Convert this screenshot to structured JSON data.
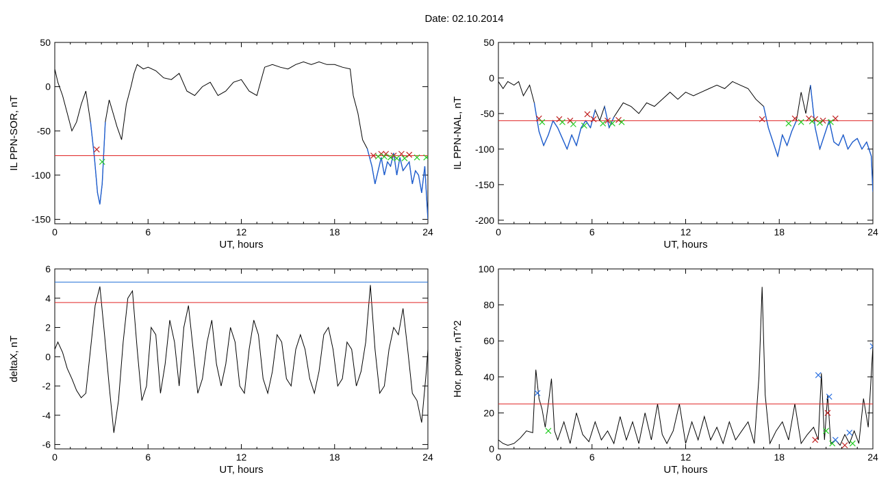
{
  "title": "Date:  02.10.2014",
  "colors": {
    "trace": "#000000",
    "below": "#1f5fd1",
    "threshold": "#e02020",
    "threshold_blue": "#1f6fd6",
    "mark_red": "#c02020",
    "mark_green": "#22cc22",
    "mark_blue": "#2a6fe0"
  },
  "chart_data": [
    {
      "type": "line",
      "xlabel": "UT, hours",
      "ylabel": "IL PPN-SOR, nT",
      "xlim": [
        0,
        24
      ],
      "ylim": [
        -155,
        50
      ],
      "xticks": [
        0,
        6,
        12,
        18,
        24
      ],
      "yticks": [
        50,
        0,
        -50,
        -100,
        -150
      ],
      "threshold": -78,
      "series": [
        {
          "x": [
            0,
            0.2,
            0.5,
            0.8,
            1.1,
            1.4,
            1.7,
            2.0,
            2.3,
            2.55,
            2.75,
            2.9,
            3.05,
            3.25,
            3.5,
            3.75,
            4.0,
            4.3,
            4.6,
            4.9,
            5.1,
            5.3,
            5.7,
            6.0,
            6.5,
            7.0,
            7.5,
            8.0,
            8.5,
            9.0,
            9.5,
            10.0,
            10.5,
            11.0,
            11.5,
            12.0,
            12.5,
            13.0,
            13.5,
            14.0,
            14.5,
            15.0,
            15.5,
            16.0,
            16.5,
            17.0,
            17.5,
            18.0,
            18.5,
            19.0,
            19.2,
            19.5,
            19.8,
            20.1,
            20.4,
            20.6,
            20.8,
            21.0,
            21.2,
            21.4,
            21.6,
            21.8,
            22.0,
            22.2,
            22.4,
            22.6,
            22.8,
            23.0,
            23.2,
            23.4,
            23.6,
            23.8,
            24.0
          ],
          "y": [
            20,
            5,
            -10,
            -30,
            -50,
            -40,
            -20,
            -5,
            -40,
            -80,
            -120,
            -133,
            -110,
            -40,
            -15,
            -30,
            -45,
            -60,
            -20,
            0,
            15,
            25,
            20,
            22,
            18,
            10,
            8,
            15,
            -5,
            -10,
            0,
            5,
            -10,
            -5,
            5,
            8,
            -5,
            -10,
            22,
            25,
            22,
            20,
            25,
            28,
            25,
            28,
            25,
            25,
            22,
            20,
            -10,
            -30,
            -60,
            -70,
            -90,
            -110,
            -95,
            -80,
            -100,
            -85,
            -90,
            -75,
            -100,
            -80,
            -95,
            -90,
            -85,
            -110,
            -95,
            -100,
            -120,
            -90,
            -150
          ]
        }
      ],
      "marks_red": [
        [
          2.7,
          -71
        ],
        [
          20.5,
          -78
        ],
        [
          21.0,
          -76
        ],
        [
          21.3,
          -76
        ],
        [
          21.8,
          -78
        ],
        [
          22.3,
          -76
        ],
        [
          22.8,
          -77
        ]
      ],
      "marks_green": [
        [
          3.05,
          -85
        ],
        [
          20.8,
          -79
        ],
        [
          21.2,
          -79
        ],
        [
          21.6,
          -80
        ],
        [
          22.0,
          -81
        ],
        [
          22.5,
          -81
        ],
        [
          23.3,
          -80
        ],
        [
          23.9,
          -80
        ]
      ]
    },
    {
      "type": "line",
      "xlabel": "UT, hours",
      "ylabel": "IL PPN-NAL, nT",
      "xlim": [
        0,
        24
      ],
      "ylim": [
        -205,
        50
      ],
      "xticks": [
        0,
        6,
        12,
        18,
        24
      ],
      "yticks": [
        50,
        0,
        -50,
        -100,
        -150,
        -200
      ],
      "threshold": -60,
      "series": [
        {
          "x": [
            0,
            0.3,
            0.6,
            1.0,
            1.3,
            1.6,
            2.0,
            2.3,
            2.6,
            2.9,
            3.2,
            3.5,
            3.8,
            4.1,
            4.4,
            4.7,
            5.0,
            5.3,
            5.6,
            5.9,
            6.2,
            6.5,
            6.8,
            7.1,
            7.4,
            7.7,
            8.0,
            8.5,
            9.0,
            9.5,
            10.0,
            10.5,
            11.0,
            11.5,
            12.0,
            12.5,
            13.0,
            13.5,
            14.0,
            14.5,
            15.0,
            15.5,
            16.0,
            16.5,
            17.0,
            17.3,
            17.6,
            17.9,
            18.2,
            18.5,
            18.8,
            19.1,
            19.4,
            19.7,
            20.0,
            20.3,
            20.6,
            20.9,
            21.2,
            21.5,
            21.8,
            22.1,
            22.4,
            22.7,
            23.0,
            23.3,
            23.6,
            23.9,
            24.0
          ],
          "y": [
            -5,
            -15,
            -5,
            -10,
            -5,
            -25,
            -10,
            -35,
            -75,
            -95,
            -80,
            -60,
            -70,
            -85,
            -100,
            -80,
            -95,
            -70,
            -60,
            -70,
            -45,
            -60,
            -40,
            -70,
            -55,
            -45,
            -35,
            -40,
            -50,
            -35,
            -40,
            -30,
            -20,
            -30,
            -20,
            -25,
            -20,
            -15,
            -10,
            -15,
            -5,
            -10,
            -15,
            -30,
            -40,
            -70,
            -90,
            -110,
            -80,
            -95,
            -75,
            -60,
            -20,
            -50,
            -10,
            -70,
            -100,
            -80,
            -60,
            -90,
            -95,
            -80,
            -100,
            -90,
            -85,
            -100,
            -90,
            -110,
            -160
          ]
        }
      ],
      "marks_red": [
        [
          2.6,
          -57
        ],
        [
          3.9,
          -58
        ],
        [
          4.6,
          -60
        ],
        [
          5.7,
          -51
        ],
        [
          6.1,
          -58
        ],
        [
          7.0,
          -60
        ],
        [
          7.7,
          -59
        ],
        [
          16.9,
          -58
        ],
        [
          19.0,
          -57
        ],
        [
          19.9,
          -57
        ],
        [
          20.3,
          -58
        ],
        [
          20.8,
          -60
        ],
        [
          21.6,
          -57
        ]
      ],
      "marks_green": [
        [
          2.8,
          -62
        ],
        [
          4.1,
          -62
        ],
        [
          4.8,
          -65
        ],
        [
          5.5,
          -67
        ],
        [
          6.7,
          -64
        ],
        [
          7.3,
          -64
        ],
        [
          7.9,
          -62
        ],
        [
          18.6,
          -64
        ],
        [
          19.4,
          -62
        ],
        [
          20.1,
          -61
        ],
        [
          20.6,
          -63
        ],
        [
          21.3,
          -62
        ]
      ]
    },
    {
      "type": "line",
      "xlabel": "UT, hours",
      "ylabel": "deltaX, nT",
      "xlim": [
        0,
        24
      ],
      "ylim": [
        -6.3,
        6
      ],
      "xticks": [
        0,
        6,
        12,
        18,
        24
      ],
      "yticks": [
        6,
        4,
        2,
        0,
        -2,
        -4,
        -6
      ],
      "threshold_red": 3.7,
      "threshold_blue": 5.1,
      "series": [
        {
          "x": [
            0,
            0.2,
            0.5,
            0.8,
            1.1,
            1.4,
            1.7,
            2.0,
            2.3,
            2.6,
            2.9,
            3.2,
            3.5,
            3.8,
            4.1,
            4.4,
            4.7,
            5.0,
            5.3,
            5.6,
            5.9,
            6.2,
            6.5,
            6.8,
            7.1,
            7.4,
            7.7,
            8.0,
            8.3,
            8.6,
            8.9,
            9.2,
            9.5,
            9.8,
            10.1,
            10.4,
            10.7,
            11.0,
            11.3,
            11.6,
            11.9,
            12.2,
            12.5,
            12.8,
            13.1,
            13.4,
            13.7,
            14.0,
            14.3,
            14.6,
            14.9,
            15.2,
            15.5,
            15.8,
            16.1,
            16.4,
            16.7,
            17.0,
            17.3,
            17.6,
            17.9,
            18.2,
            18.5,
            18.8,
            19.1,
            19.4,
            19.7,
            20.0,
            20.3,
            20.6,
            20.9,
            21.2,
            21.5,
            21.8,
            22.1,
            22.4,
            22.7,
            23.0,
            23.3,
            23.6,
            23.9,
            24.0
          ],
          "y": [
            0.5,
            1.0,
            0.3,
            -0.8,
            -1.5,
            -2.3,
            -2.8,
            -2.5,
            0.5,
            3.5,
            4.8,
            1.5,
            -2.0,
            -5.2,
            -3.0,
            1.0,
            4.0,
            4.5,
            0.5,
            -3.0,
            -2.0,
            2.0,
            1.5,
            -2.5,
            -0.5,
            2.5,
            1.0,
            -2.0,
            2.0,
            3.5,
            0.5,
            -2.5,
            -1.5,
            1.0,
            2.5,
            -0.5,
            -2.0,
            -0.5,
            2.0,
            1.0,
            -2.0,
            -2.5,
            0.5,
            2.5,
            1.5,
            -1.5,
            -2.5,
            -1.0,
            1.5,
            1.0,
            -1.5,
            -2.0,
            0.5,
            1.5,
            0.5,
            -1.5,
            -2.5,
            -1.0,
            1.5,
            2.0,
            0.5,
            -2.0,
            -1.5,
            1.0,
            0.5,
            -2.0,
            -1.0,
            1.0,
            4.9,
            0.5,
            -2.5,
            -2.0,
            0.5,
            2.0,
            1.5,
            3.3,
            0.5,
            -2.5,
            -3.0,
            -4.5,
            -1.0,
            0.5
          ]
        }
      ]
    },
    {
      "type": "line",
      "xlabel": "UT, hours",
      "ylabel": "Hor. power, nT^2",
      "xlim": [
        0,
        24
      ],
      "ylim": [
        0,
        100
      ],
      "xticks": [
        0,
        6,
        12,
        18,
        24
      ],
      "yticks": [
        100,
        80,
        60,
        40,
        20,
        0
      ],
      "threshold": 25,
      "series": [
        {
          "x": [
            0,
            0.3,
            0.6,
            1.0,
            1.4,
            1.8,
            2.2,
            2.4,
            2.6,
            2.8,
            3.0,
            3.2,
            3.4,
            3.6,
            3.8,
            4.2,
            4.6,
            5.0,
            5.4,
            5.8,
            6.2,
            6.6,
            7.0,
            7.4,
            7.8,
            8.2,
            8.6,
            9.0,
            9.4,
            9.8,
            10.2,
            10.5,
            10.8,
            11.2,
            11.6,
            12.0,
            12.4,
            12.8,
            13.2,
            13.6,
            14.0,
            14.4,
            14.8,
            15.2,
            15.6,
            16.0,
            16.4,
            16.7,
            16.9,
            17.1,
            17.4,
            17.8,
            18.2,
            18.6,
            19.0,
            19.4,
            19.8,
            20.2,
            20.5,
            20.7,
            20.9,
            21.1,
            21.3,
            21.6,
            21.9,
            22.2,
            22.5,
            22.8,
            23.1,
            23.4,
            23.7,
            24.0
          ],
          "y": [
            5,
            3,
            2,
            3,
            6,
            10,
            9,
            44,
            28,
            22,
            12,
            25,
            39,
            10,
            5,
            15,
            3,
            20,
            8,
            4,
            15,
            5,
            10,
            3,
            18,
            5,
            15,
            3,
            20,
            5,
            25,
            8,
            3,
            10,
            25,
            3,
            15,
            5,
            18,
            5,
            12,
            3,
            15,
            5,
            10,
            15,
            3,
            40,
            90,
            30,
            3,
            10,
            15,
            5,
            25,
            3,
            8,
            12,
            5,
            42,
            5,
            30,
            3,
            5,
            2,
            8,
            3,
            10,
            3,
            28,
            12,
            57
          ]
        }
      ],
      "marks_blue": [
        [
          2.5,
          31
        ],
        [
          20.5,
          41
        ],
        [
          21.2,
          29
        ],
        [
          21.6,
          5
        ],
        [
          22.5,
          9
        ],
        [
          24.0,
          57
        ]
      ],
      "marks_red": [
        [
          20.3,
          5
        ],
        [
          21.1,
          20
        ],
        [
          22.2,
          2
        ]
      ],
      "marks_green": [
        [
          3.2,
          10
        ],
        [
          21.0,
          10
        ],
        [
          21.4,
          3
        ],
        [
          22.7,
          3
        ]
      ]
    }
  ]
}
